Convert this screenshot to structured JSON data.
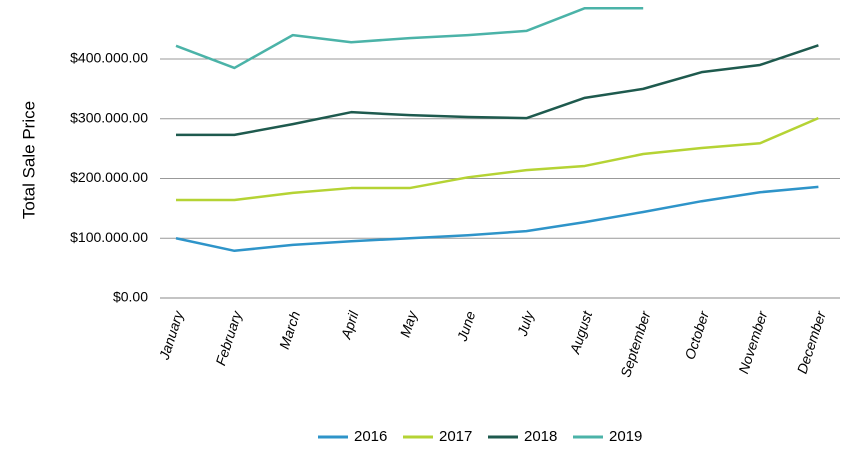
{
  "chart_data": {
    "type": "line",
    "y_label": "Total Sale Price",
    "categories": [
      "January",
      "February",
      "March",
      "April",
      "May",
      "June",
      "July",
      "August",
      "September",
      "October",
      "November",
      "December"
    ],
    "series": [
      {
        "name": "2016",
        "color": "#2e94c9",
        "values": [
          100000,
          79000,
          89000,
          95000,
          100000,
          105000,
          112000,
          127000,
          144000,
          162000,
          177000,
          186000
        ]
      },
      {
        "name": "2017",
        "color": "#b5d334",
        "values": [
          164000,
          164000,
          176000,
          184000,
          184000,
          202000,
          214000,
          221000,
          241000,
          251000,
          259000,
          301000
        ]
      },
      {
        "name": "2018",
        "color": "#1e5a4e",
        "values": [
          273000,
          273000,
          291000,
          311000,
          306000,
          303000,
          301000,
          335000,
          350000,
          378000,
          390000,
          423000
        ]
      },
      {
        "name": "2019",
        "color": "#4bb3a8",
        "values": [
          422000,
          385000,
          440000,
          428000,
          435000,
          440000,
          447000,
          485000,
          485000,
          null,
          null,
          null
        ]
      }
    ],
    "ylim": [
      0,
      500000
    ],
    "yticks": [
      {
        "value": 0,
        "label": "$0.00"
      },
      {
        "value": 100000,
        "label": "$100.000.00"
      },
      {
        "value": 200000,
        "label": "$200.000.00"
      },
      {
        "value": 300000,
        "label": "$300.000.00"
      },
      {
        "value": 400000,
        "label": "$400.000.00"
      }
    ],
    "grid": true,
    "legend": "bottom"
  }
}
